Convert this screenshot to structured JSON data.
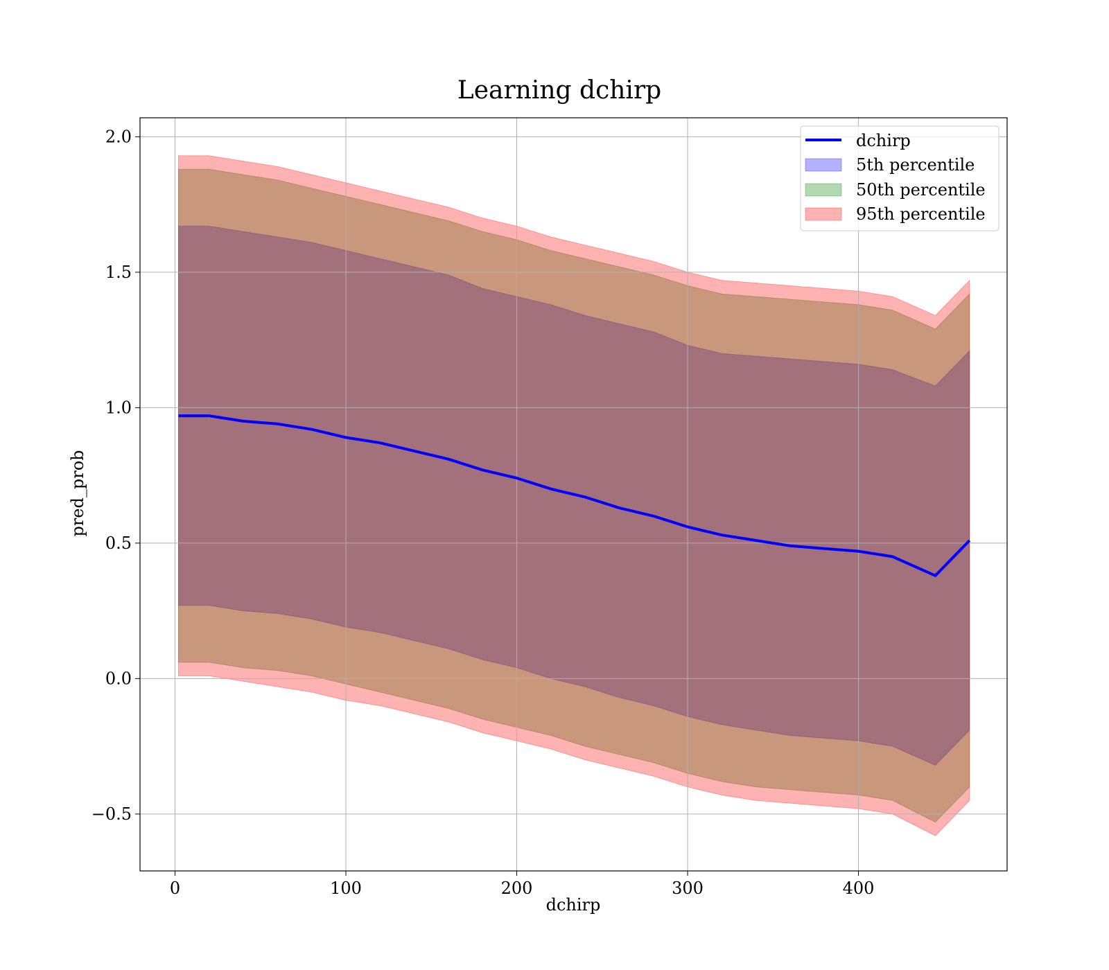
{
  "chart_data": {
    "type": "area",
    "title": "Learning dchirp",
    "xlabel": "dchirp",
    "ylabel": "pred_prob",
    "xlim": [
      -20.5,
      487
    ],
    "ylim": [
      -0.71,
      2.07
    ],
    "xticks": [
      0,
      100,
      200,
      300,
      400
    ],
    "yticks": [
      2.0,
      1.5,
      1.0,
      0.5,
      0.0,
      -0.5
    ],
    "ytick_labels": [
      "2.0",
      "1.5",
      "1.0",
      "0.5",
      "0.0",
      "−0.5"
    ],
    "xtick_labels": [
      "0",
      "100",
      "200",
      "300",
      "400"
    ],
    "grid": true,
    "legend_position": "top-right",
    "legend": [
      "dchirp",
      "5th percentile",
      "50th percentile",
      "95th percentile"
    ],
    "x": [
      2,
      20,
      40,
      60,
      80,
      100,
      120,
      140,
      160,
      180,
      200,
      220,
      240,
      260,
      280,
      300,
      320,
      340,
      360,
      380,
      400,
      420,
      445,
      465
    ],
    "series": [
      {
        "name": "dchirp",
        "kind": "line",
        "color": "#0000ff",
        "values": [
          0.97,
          0.97,
          0.95,
          0.94,
          0.92,
          0.89,
          0.87,
          0.84,
          0.81,
          0.77,
          0.74,
          0.7,
          0.67,
          0.63,
          0.6,
          0.56,
          0.53,
          0.51,
          0.49,
          0.48,
          0.47,
          0.45,
          0.38,
          0.51
        ]
      },
      {
        "name": "5th percentile",
        "kind": "band",
        "color": "#0000ff",
        "upper": [
          1.67,
          1.67,
          1.65,
          1.63,
          1.61,
          1.58,
          1.55,
          1.52,
          1.49,
          1.44,
          1.41,
          1.38,
          1.34,
          1.31,
          1.28,
          1.23,
          1.2,
          1.19,
          1.18,
          1.17,
          1.16,
          1.14,
          1.08,
          1.21
        ],
        "lower": [
          0.27,
          0.27,
          0.25,
          0.24,
          0.22,
          0.19,
          0.17,
          0.14,
          0.11,
          0.07,
          0.04,
          0.0,
          -0.03,
          -0.07,
          -0.1,
          -0.14,
          -0.17,
          -0.19,
          -0.21,
          -0.22,
          -0.23,
          -0.25,
          -0.32,
          -0.19
        ]
      },
      {
        "name": "50th percentile",
        "kind": "band",
        "color": "#008000",
        "upper": [
          1.88,
          1.88,
          1.86,
          1.84,
          1.81,
          1.78,
          1.75,
          1.72,
          1.69,
          1.65,
          1.62,
          1.58,
          1.55,
          1.52,
          1.49,
          1.45,
          1.42,
          1.41,
          1.4,
          1.39,
          1.38,
          1.36,
          1.29,
          1.42
        ],
        "lower": [
          0.06,
          0.06,
          0.04,
          0.03,
          0.01,
          -0.02,
          -0.05,
          -0.08,
          -0.11,
          -0.15,
          -0.18,
          -0.21,
          -0.25,
          -0.28,
          -0.31,
          -0.35,
          -0.38,
          -0.4,
          -0.41,
          -0.42,
          -0.43,
          -0.45,
          -0.53,
          -0.4
        ]
      },
      {
        "name": "95th percentile",
        "kind": "band",
        "color": "#ff0000",
        "upper": [
          1.93,
          1.93,
          1.91,
          1.89,
          1.86,
          1.83,
          1.8,
          1.77,
          1.74,
          1.7,
          1.67,
          1.63,
          1.6,
          1.57,
          1.54,
          1.5,
          1.47,
          1.46,
          1.45,
          1.44,
          1.43,
          1.41,
          1.34,
          1.47
        ],
        "lower": [
          0.01,
          0.01,
          -0.01,
          -0.03,
          -0.05,
          -0.08,
          -0.1,
          -0.13,
          -0.16,
          -0.2,
          -0.23,
          -0.26,
          -0.3,
          -0.33,
          -0.36,
          -0.4,
          -0.43,
          -0.45,
          -0.46,
          -0.47,
          -0.48,
          -0.5,
          -0.58,
          -0.45
        ]
      }
    ]
  }
}
